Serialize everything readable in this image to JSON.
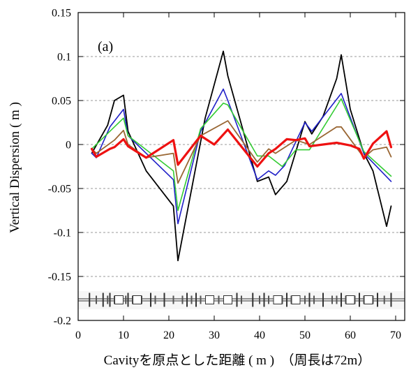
{
  "chart_data": {
    "type": "line",
    "panel_label": "(a)",
    "xlabel": "Cavityを原点とした距離 ( m )　（周長は72m）",
    "ylabel": "Vertical Dispersion ( m )",
    "xlim": [
      0,
      72
    ],
    "ylim": [
      -0.2,
      0.15
    ],
    "xticks": [
      0,
      10,
      20,
      30,
      40,
      50,
      60,
      70
    ],
    "xtick_labels": [
      "0",
      "10",
      "20",
      "30",
      "40",
      "50",
      "60",
      "70"
    ],
    "yticks": [
      -0.2,
      -0.15,
      -0.1,
      -0.05,
      0,
      0.05,
      0.1,
      0.15
    ],
    "ytick_labels": [
      "-0.2",
      "-0.15",
      "-0.1",
      "-0.05",
      "0",
      "0.05",
      "0.1",
      "0.15"
    ],
    "grid": "horizontal dashed",
    "legend": "none",
    "series": [
      {
        "color": "#000000",
        "width": 1.8,
        "x": [
          3,
          6.5,
          8,
          10,
          11,
          15,
          21,
          22,
          28,
          32,
          33,
          39.5,
          42,
          43.5,
          46,
          50,
          51.5,
          54,
          57,
          58,
          60,
          63,
          65,
          68,
          69
        ],
        "y": [
          -0.01,
          0.022,
          0.05,
          0.056,
          0.015,
          -0.03,
          -0.07,
          -0.132,
          0.03,
          0.106,
          0.078,
          -0.042,
          -0.037,
          -0.057,
          -0.042,
          0.026,
          0.012,
          0.032,
          0.075,
          0.102,
          0.04,
          -0.01,
          -0.03,
          -0.093,
          -0.07
        ]
      },
      {
        "color": "#1f1fc8",
        "width": 1.6,
        "x": [
          3,
          4,
          7,
          10,
          11,
          21,
          22,
          27,
          32,
          33,
          39.5,
          42,
          43.5,
          45.5,
          50,
          51.5,
          58,
          63,
          69
        ],
        "y": [
          -0.01,
          -0.015,
          0.02,
          0.04,
          0.01,
          -0.04,
          -0.09,
          0.015,
          0.063,
          0.05,
          -0.04,
          -0.03,
          -0.035,
          -0.024,
          0.025,
          0.015,
          0.058,
          -0.01,
          -0.042
        ]
      },
      {
        "color": "#33cc33",
        "width": 1.6,
        "x": [
          3,
          7,
          10,
          11,
          21,
          22,
          27,
          32,
          33,
          39.5,
          42,
          45,
          48,
          51,
          58,
          63,
          69
        ],
        "y": [
          -0.005,
          0.015,
          0.03,
          0.01,
          -0.03,
          -0.075,
          0.018,
          0.047,
          0.045,
          -0.013,
          -0.013,
          -0.025,
          -0.006,
          -0.006,
          0.052,
          -0.008,
          -0.036
        ]
      },
      {
        "color": "#996633",
        "width": 1.8,
        "x": [
          3,
          4,
          8,
          10,
          11,
          15,
          21,
          22,
          27,
          33,
          39.5,
          42,
          43.5,
          48,
          51,
          57,
          58,
          63,
          65,
          68,
          69
        ],
        "y": [
          -0.005,
          -0.01,
          0.005,
          0.016,
          0.0,
          -0.015,
          -0.01,
          -0.044,
          0.01,
          0.027,
          -0.02,
          -0.005,
          -0.01,
          0.005,
          0.0,
          0.02,
          0.02,
          -0.015,
          -0.006,
          -0.003,
          -0.014
        ]
      },
      {
        "color": "#ee1111",
        "width": 3.2,
        "x": [
          3,
          4,
          7,
          8,
          10,
          11,
          15,
          21,
          22,
          27,
          30,
          33,
          39.5,
          42,
          43.5,
          46,
          48,
          50,
          51,
          57,
          60,
          62,
          63,
          65,
          68,
          69
        ],
        "y": [
          -0.005,
          -0.014,
          -0.005,
          -0.003,
          0.006,
          -0.002,
          -0.015,
          0.005,
          -0.023,
          0.01,
          0.0,
          0.017,
          -0.025,
          -0.01,
          -0.005,
          0.006,
          0.005,
          0.007,
          -0.002,
          0.002,
          -0.001,
          -0.005,
          -0.016,
          0.001,
          0.015,
          -0.003
        ]
      }
    ]
  }
}
